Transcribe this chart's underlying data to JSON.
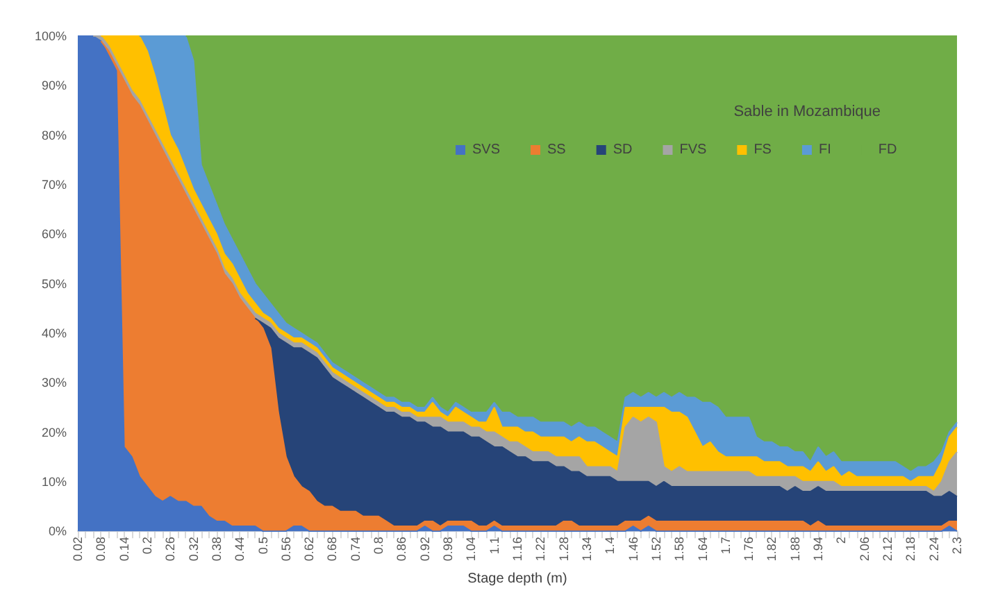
{
  "chart_data": {
    "type": "area",
    "stacked": true,
    "title": "Sable in Mozambique",
    "xlabel": "Stage depth (m)",
    "categories": [
      "0.02",
      null,
      null,
      "0.08",
      null,
      null,
      "0.14",
      null,
      null,
      "0.2",
      null,
      null,
      "0.26",
      null,
      null,
      "0.32",
      null,
      null,
      "0.38",
      null,
      null,
      "0.44",
      null,
      null,
      "0.5",
      null,
      null,
      "0.56",
      null,
      null,
      "0.62",
      null,
      null,
      "0.68",
      null,
      null,
      "0.74",
      null,
      null,
      "0.8",
      null,
      null,
      "0.86",
      null,
      null,
      "0.92",
      null,
      null,
      "0.98",
      null,
      null,
      "1.04",
      null,
      null,
      "1.1",
      null,
      null,
      "1.16",
      null,
      null,
      "1.22",
      null,
      null,
      "1.28",
      null,
      null,
      "1.34",
      null,
      null,
      "1.4",
      null,
      null,
      "1.46",
      null,
      null,
      "1.52",
      null,
      null,
      "1.58",
      null,
      null,
      "1.64",
      null,
      null,
      "1.7",
      null,
      null,
      "1.76",
      null,
      null,
      "1.82",
      null,
      null,
      "1.88",
      null,
      null,
      "1.94",
      null,
      null,
      "2",
      null,
      null,
      "2.06",
      null,
      null,
      "2.12",
      null,
      null,
      "2.18",
      null,
      null,
      "2.24",
      null,
      null,
      "2.3"
    ],
    "series": [
      {
        "name": "SVS",
        "color": "#4472c4",
        "values": [
          100,
          100,
          100,
          99,
          96,
          93,
          17,
          15,
          11,
          9,
          7,
          6,
          7,
          6,
          6,
          5,
          5,
          3,
          2,
          2,
          1,
          1,
          1,
          1,
          0,
          0,
          0,
          0,
          1,
          1,
          0,
          0,
          0,
          0,
          0,
          0,
          0,
          0,
          0,
          0,
          0,
          0,
          0,
          0,
          0,
          1,
          0,
          0,
          1,
          1,
          1,
          0,
          0,
          0,
          1,
          0,
          0,
          0,
          0,
          0,
          0,
          0,
          0,
          0,
          0,
          0,
          0,
          0,
          0,
          0,
          0,
          0,
          1,
          0,
          1,
          0,
          0,
          0,
          0,
          0,
          0,
          0,
          0,
          0,
          0,
          0,
          0,
          0,
          0,
          0,
          0,
          0,
          0,
          0,
          0,
          0,
          0,
          0,
          0,
          0,
          0,
          0,
          0,
          0,
          0,
          0,
          0,
          0,
          0,
          0,
          0,
          0,
          0,
          1,
          0
        ]
      },
      {
        "name": "SS",
        "color": "#ed7d31",
        "values": [
          null,
          null,
          null,
          0,
          1,
          1,
          74,
          73,
          75,
          74,
          73,
          71,
          67,
          65,
          62,
          60,
          57,
          56,
          54,
          50,
          49,
          46,
          44,
          42,
          41,
          37,
          24,
          15,
          10,
          8,
          8,
          6,
          5,
          5,
          4,
          4,
          4,
          3,
          3,
          3,
          2,
          1,
          1,
          1,
          1,
          1,
          2,
          1,
          1,
          1,
          1,
          2,
          1,
          1,
          1,
          1,
          1,
          1,
          1,
          1,
          1,
          1,
          1,
          2,
          2,
          1,
          1,
          1,
          1,
          1,
          1,
          2,
          1,
          2,
          2,
          2,
          2,
          2,
          2,
          2,
          2,
          2,
          2,
          2,
          2,
          2,
          2,
          2,
          2,
          2,
          2,
          2,
          2,
          2,
          2,
          1,
          2,
          1,
          1,
          1,
          1,
          1,
          1,
          1,
          1,
          1,
          1,
          1,
          1,
          1,
          1,
          1,
          1,
          1,
          2
        ]
      },
      {
        "name": "SD",
        "color": "#264478",
        "values": [
          null,
          null,
          null,
          null,
          null,
          null,
          null,
          null,
          null,
          null,
          null,
          null,
          null,
          null,
          null,
          null,
          null,
          null,
          null,
          null,
          null,
          null,
          null,
          0,
          1,
          4,
          15,
          23,
          26,
          28,
          28,
          29,
          28,
          26,
          26,
          25,
          24,
          24,
          23,
          22,
          22,
          23,
          22,
          22,
          21,
          20,
          19,
          20,
          18,
          18,
          18,
          17,
          18,
          17,
          15,
          16,
          15,
          14,
          14,
          13,
          13,
          13,
          12,
          11,
          10,
          11,
          10,
          10,
          10,
          10,
          9,
          8,
          8,
          8,
          7,
          7,
          8,
          7,
          7,
          7,
          7,
          7,
          7,
          7,
          7,
          7,
          7,
          7,
          7,
          7,
          7,
          7,
          6,
          7,
          6,
          7,
          7,
          7,
          7,
          7,
          7,
          7,
          7,
          7,
          7,
          7,
          7,
          7,
          7,
          7,
          7,
          6,
          6,
          6,
          5
        ]
      },
      {
        "name": "FVS",
        "color": "#a5a5a5",
        "values": [
          null,
          null,
          0,
          1,
          1,
          1,
          1,
          1,
          1,
          1,
          1,
          1,
          1,
          1,
          1,
          1,
          1,
          1,
          1,
          1,
          1,
          1,
          1,
          1,
          1,
          1,
          1,
          1,
          1,
          1,
          1,
          1,
          1,
          1,
          1,
          1,
          1,
          1,
          1,
          1,
          1,
          1,
          1,
          1,
          1,
          1,
          2,
          2,
          2,
          2,
          2,
          2,
          2,
          2,
          3,
          2,
          2,
          3,
          2,
          2,
          2,
          2,
          2,
          2,
          3,
          3,
          2,
          2,
          2,
          2,
          2,
          11,
          13,
          12,
          13,
          13,
          3,
          3,
          4,
          3,
          3,
          3,
          3,
          3,
          3,
          3,
          3,
          3,
          2,
          2,
          2,
          2,
          3,
          2,
          2,
          2,
          1,
          2,
          2,
          1,
          1,
          1,
          1,
          1,
          1,
          1,
          1,
          1,
          1,
          1,
          1,
          1,
          3,
          6,
          9
        ]
      },
      {
        "name": "FS",
        "color": "#ffc000",
        "values": [
          null,
          null,
          null,
          0,
          2,
          5,
          8,
          11,
          13,
          13,
          11,
          8,
          5,
          5,
          4,
          3,
          3,
          3,
          3,
          3,
          3,
          3,
          2,
          2,
          1,
          1,
          1,
          1,
          1,
          1,
          1,
          1,
          1,
          1,
          1,
          1,
          1,
          1,
          1,
          1,
          1,
          1,
          1,
          1,
          1,
          1,
          3,
          1,
          1,
          3,
          2,
          2,
          1,
          2,
          5,
          2,
          3,
          3,
          3,
          4,
          3,
          3,
          4,
          4,
          3,
          4,
          5,
          5,
          4,
          3,
          3,
          4,
          2,
          3,
          2,
          3,
          12,
          12,
          11,
          11,
          8,
          5,
          6,
          4,
          3,
          3,
          3,
          3,
          4,
          3,
          3,
          3,
          2,
          2,
          3,
          2,
          4,
          2,
          3,
          2,
          3,
          2,
          2,
          2,
          2,
          2,
          2,
          2,
          1,
          2,
          2,
          3,
          4,
          5,
          5
        ]
      },
      {
        "name": "FI",
        "color": "#5b9bd5",
        "values": [
          null,
          null,
          null,
          null,
          null,
          null,
          null,
          null,
          0,
          3,
          8,
          14,
          20,
          23,
          27,
          26,
          8,
          7,
          6,
          6,
          5,
          5,
          5,
          4,
          4,
          3,
          3,
          2,
          2,
          1,
          1,
          1,
          1,
          1,
          1,
          1,
          1,
          1,
          1,
          1,
          1,
          1,
          1,
          1,
          1,
          1,
          1,
          1,
          1,
          1,
          1,
          1,
          2,
          2,
          1,
          3,
          3,
          2,
          3,
          3,
          3,
          3,
          3,
          3,
          3,
          3,
          3,
          3,
          3,
          3,
          3,
          2,
          3,
          2,
          3,
          2,
          3,
          3,
          4,
          4,
          7,
          9,
          8,
          9,
          8,
          8,
          8,
          8,
          4,
          4,
          4,
          3,
          4,
          3,
          3,
          2,
          3,
          3,
          3,
          3,
          2,
          3,
          3,
          3,
          3,
          3,
          3,
          2,
          2,
          2,
          2,
          3,
          2,
          1,
          1
        ]
      },
      {
        "name": "FD",
        "color": "#70ad47",
        "values": [
          null,
          null,
          null,
          null,
          null,
          null,
          null,
          null,
          null,
          null,
          null,
          null,
          null,
          null,
          0,
          5,
          26,
          30,
          34,
          38,
          41,
          44,
          47,
          50,
          52,
          54,
          56,
          58,
          59,
          60,
          61,
          62,
          64,
          66,
          67,
          68,
          69,
          70,
          71,
          72,
          73,
          73,
          74,
          74,
          75,
          75,
          73,
          75,
          76,
          74,
          75,
          76,
          76,
          76,
          74,
          76,
          76,
          77,
          77,
          77,
          78,
          78,
          78,
          78,
          79,
          78,
          79,
          79,
          80,
          81,
          82,
          73,
          72,
          73,
          72,
          73,
          72,
          73,
          72,
          73,
          73,
          74,
          74,
          75,
          77,
          77,
          77,
          77,
          81,
          82,
          82,
          83,
          83,
          84,
          84,
          86,
          83,
          85,
          84,
          86,
          86,
          86,
          86,
          86,
          86,
          86,
          86,
          87,
          88,
          87,
          87,
          86,
          84,
          80,
          78
        ]
      }
    ],
    "ylim": [
      0,
      100
    ],
    "yticks": [
      {
        "value": 0,
        "label": "0%"
      },
      {
        "value": 10,
        "label": "10%"
      },
      {
        "value": 20,
        "label": "20%"
      },
      {
        "value": 30,
        "label": "30%"
      },
      {
        "value": 40,
        "label": "40%"
      },
      {
        "value": 50,
        "label": "50%"
      },
      {
        "value": 60,
        "label": "60%"
      },
      {
        "value": 70,
        "label": "70%"
      },
      {
        "value": 80,
        "label": "80%"
      },
      {
        "value": 90,
        "label": "90%"
      },
      {
        "value": 100,
        "label": "100%"
      }
    ],
    "legend": "top"
  }
}
